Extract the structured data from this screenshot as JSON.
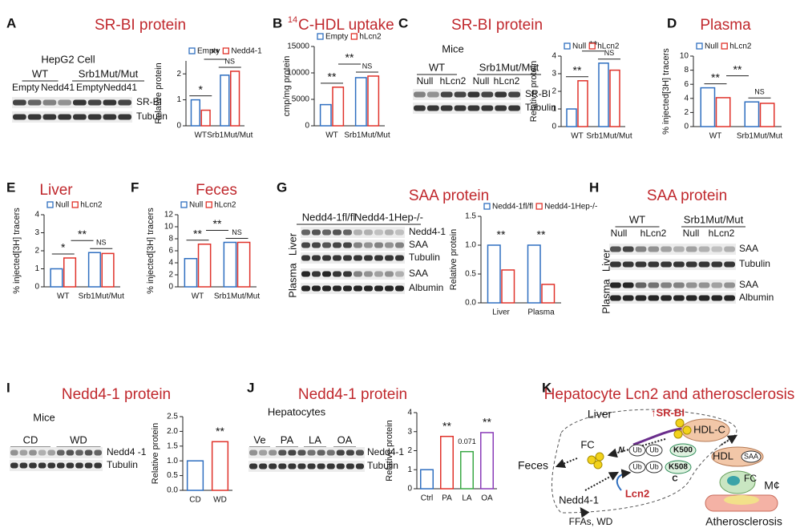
{
  "panels": {
    "A": {
      "letter": "A",
      "title": "SR-BI protein",
      "cell": "HepG2 Cell",
      "groups": [
        "WT",
        "Srb1Mut/Mut"
      ],
      "lanes": [
        "Empty",
        "Nedd41",
        "Empty",
        "Nedd41"
      ],
      "bands": [
        "SR-BI",
        "Tubulin"
      ]
    },
    "B": {
      "letter": "B",
      "title_sup": "14",
      "title": "C-HDL uptake"
    },
    "C": {
      "letter": "C",
      "title": "SR-BI protein",
      "cell": "Mice",
      "groups": [
        "WT",
        "Srb1Mut/Mut"
      ],
      "lanes": [
        "Null",
        "hLcn2",
        "Null",
        "hLcn2"
      ],
      "bands": [
        "SR-BI",
        "Tubulin"
      ]
    },
    "D": {
      "letter": "D",
      "title": "Plasma"
    },
    "E": {
      "letter": "E",
      "title": "Liver"
    },
    "F": {
      "letter": "F",
      "title": "Feces"
    },
    "G": {
      "letter": "G",
      "title": "SAA protein",
      "groups": [
        "Nedd4-1fl/fl",
        "Nedd4-1Hep-/-"
      ],
      "bands": [
        "Nedd4-1",
        "SAA",
        "Tubulin",
        "SAA",
        "Albumin"
      ],
      "tissues": [
        "Liver",
        "Plasma"
      ]
    },
    "H": {
      "letter": "H",
      "title": "SAA protein",
      "groups": [
        "WT",
        "Srb1Mut/Mut"
      ],
      "lanes": [
        "Null",
        "hLcn2",
        "Null",
        "hLcn2"
      ],
      "bands": [
        "SAA",
        "Tubulin",
        "SAA",
        "Albumin"
      ],
      "tissues": [
        "Liver",
        "Plasma"
      ]
    },
    "I": {
      "letter": "I",
      "title": "Nedd4-1 protein",
      "cell": "Mice",
      "groups": [
        "CD",
        "WD"
      ],
      "bands": [
        "Nedd4 -1",
        "Tubulin"
      ]
    },
    "J": {
      "letter": "J",
      "title": "Nedd4-1 protein",
      "cell": "Hepatocytes",
      "groups": [
        "Ve",
        "PA",
        "LA",
        "OA"
      ],
      "bands": [
        "Nedd4-1",
        "Tubulin"
      ]
    },
    "K": {
      "letter": "K",
      "title": "Hepatocyte Lcn2 and atherosclerosis"
    }
  },
  "diagram": {
    "liver": "Liver",
    "srbi": "↑SR-BI",
    "hdlc": "HDL-C",
    "n": "N",
    "fc": "FC",
    "feces": "Feces",
    "ub": [
      "Ub",
      "Ub",
      "Ub",
      "Ub"
    ],
    "k500": "K500",
    "k508": "K508",
    "c": "C",
    "lcn2": "Lcn2",
    "nedd41": "Nedd4-1",
    "ffas": "FFAs, WD",
    "hdl": "HDL",
    "saa": "SAA",
    "fc2": "FC",
    "mphi": "M¢",
    "athero": "Atherosclerosis"
  },
  "chart_data": [
    {
      "type": "bar",
      "y_label": "Relative protein",
      "categories": [
        "WT",
        "Srb1Mut/Mut"
      ],
      "series": [
        {
          "name": "Empty",
          "color": "#2f6fc0",
          "values": [
            1.0,
            1.95
          ]
        },
        {
          "name": "Nedd4-1",
          "color": "#e0322a",
          "values": [
            0.6,
            2.1
          ]
        }
      ],
      "ylim": [
        0,
        2.5
      ],
      "yticks": [
        0,
        1,
        2
      ],
      "annotations": [
        "*",
        "**",
        "NS"
      ]
    },
    {
      "type": "bar",
      "y_label": "cmp/mg protein",
      "categories": [
        "WT",
        "Srb1Mut/Mut"
      ],
      "series": [
        {
          "name": "Empty",
          "color": "#2f6fc0",
          "values": [
            4000,
            9100
          ]
        },
        {
          "name": "hLcn2",
          "color": "#e0322a",
          "values": [
            7300,
            9400
          ]
        }
      ],
      "ylim": [
        0,
        15000
      ],
      "yticks": [
        0,
        5000,
        10000,
        15000
      ],
      "annotations": [
        "**",
        "**",
        "NS"
      ]
    },
    {
      "type": "bar",
      "y_label": "Relative protein",
      "categories": [
        "WT",
        "Srb1Mut/Mut"
      ],
      "series": [
        {
          "name": "Null",
          "color": "#2f6fc0",
          "values": [
            1.0,
            3.6
          ]
        },
        {
          "name": "hLcn2",
          "color": "#e0322a",
          "values": [
            2.6,
            3.2
          ]
        }
      ],
      "ylim": [
        0,
        4
      ],
      "yticks": [
        0,
        1,
        2,
        3,
        4
      ],
      "annotations": [
        "**",
        "**",
        "NS"
      ]
    },
    {
      "type": "bar",
      "y_label": "% injected[3H] tracers",
      "categories": [
        "WT",
        "Srb1Mut/Mut"
      ],
      "series": [
        {
          "name": "Null",
          "color": "#2f6fc0",
          "values": [
            5.5,
            3.5
          ]
        },
        {
          "name": "hLcn2",
          "color": "#e0322a",
          "values": [
            4.1,
            3.3
          ]
        }
      ],
      "ylim": [
        0,
        10
      ],
      "yticks": [
        0,
        2,
        4,
        6,
        8,
        10
      ],
      "annotations": [
        "**",
        "**",
        "NS"
      ]
    },
    {
      "type": "bar",
      "y_label": "% injected[3H] tracers",
      "categories": [
        "WT",
        "Srb1Mut/Mut"
      ],
      "series": [
        {
          "name": "Null",
          "color": "#2f6fc0",
          "values": [
            1.0,
            1.9
          ]
        },
        {
          "name": "hLcn2",
          "color": "#e0322a",
          "values": [
            1.6,
            1.85
          ]
        }
      ],
      "ylim": [
        0,
        4
      ],
      "yticks": [
        0,
        1,
        2,
        3,
        4
      ],
      "annotations": [
        "*",
        "**",
        "NS"
      ]
    },
    {
      "type": "bar",
      "y_label": "% injected[3H] tracers",
      "categories": [
        "WT",
        "Srb1Mut/Mut"
      ],
      "series": [
        {
          "name": "Null",
          "color": "#2f6fc0",
          "values": [
            4.7,
            7.4
          ]
        },
        {
          "name": "hLcn2",
          "color": "#e0322a",
          "values": [
            7.1,
            7.4
          ]
        }
      ],
      "ylim": [
        0,
        12
      ],
      "yticks": [
        0,
        2,
        4,
        6,
        8,
        10,
        12
      ],
      "annotations": [
        "**",
        "**",
        "NS"
      ]
    },
    {
      "type": "bar",
      "y_label": "Relative protein",
      "categories": [
        "Liver",
        "Plasma"
      ],
      "series": [
        {
          "name": "Nedd4-1fl/fl",
          "color": "#2f6fc0",
          "values": [
            1.0,
            1.0
          ]
        },
        {
          "name": "Nedd4-1Hep-/-",
          "color": "#e0322a",
          "values": [
            0.57,
            0.32
          ]
        }
      ],
      "ylim": [
        0,
        1.5
      ],
      "yticks": [
        {
          "value": 0,
          "label": "0.0"
        },
        {
          "value": 0.5,
          "label": "0.5"
        },
        {
          "value": 1,
          "label": "1.0"
        },
        {
          "value": 1.5,
          "label": "1.5"
        }
      ],
      "annotations": [
        "**",
        "**"
      ]
    },
    {
      "type": "bar",
      "y_label": "Relative protein",
      "categories": [
        "CD",
        "WD"
      ],
      "values": [
        1.0,
        1.65
      ],
      "colors": [
        "#2f6fc0",
        "#e0322a"
      ],
      "ylim": [
        0,
        2.5
      ],
      "yticks": [
        {
          "value": 0,
          "label": "0.0"
        },
        {
          "value": 0.5,
          "label": "0.5"
        },
        {
          "value": 1,
          "label": "1.0"
        },
        {
          "value": 1.5,
          "label": "1.5"
        },
        {
          "value": 2,
          "label": "2.0"
        },
        {
          "value": 2.5,
          "label": "2.5"
        }
      ],
      "annotations": [
        null,
        "**"
      ]
    },
    {
      "type": "bar",
      "y_label": "Relative protein",
      "categories": [
        "Ctrl",
        "PA",
        "LA",
        "OA"
      ],
      "values": [
        1.0,
        2.75,
        1.95,
        2.95
      ],
      "colors": [
        "#2f6fc0",
        "#e0322a",
        "#3aa845",
        "#8a3cb8"
      ],
      "ylim": [
        0,
        4
      ],
      "yticks": [
        0,
        1,
        2,
        3,
        4
      ],
      "annotations": [
        null,
        "**",
        "0.071",
        "**"
      ]
    }
  ]
}
